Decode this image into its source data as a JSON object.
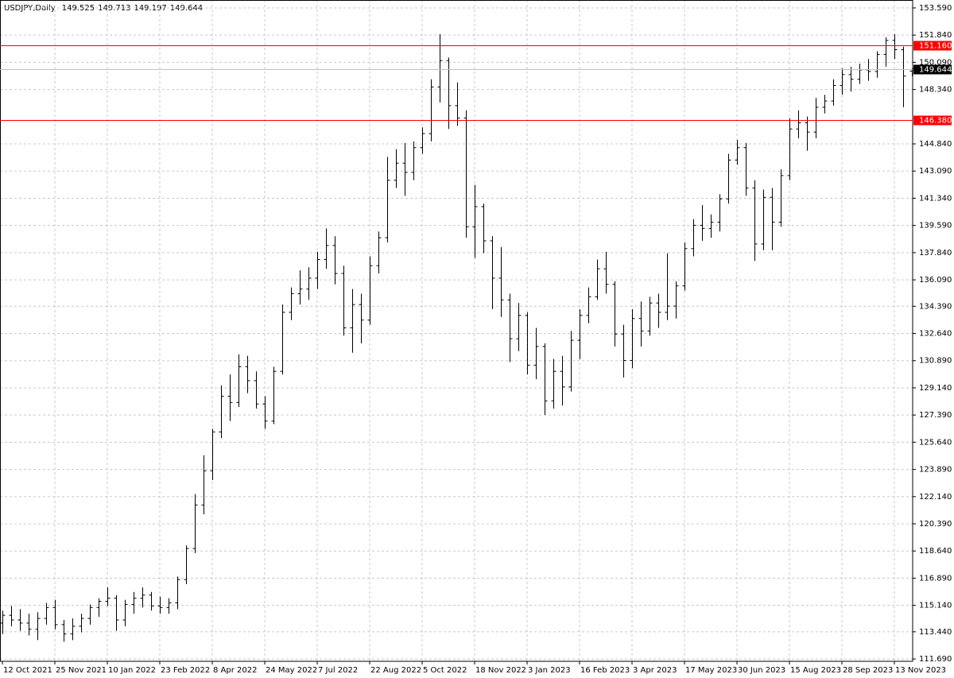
{
  "chart_data": {
    "type": "ohlc",
    "title": "USDJPY,Daily",
    "title_values": [
      "149.525",
      "149.713",
      "149.197",
      "149.644"
    ],
    "color": "#000000",
    "grid": true,
    "categories": [
      "12 Oct 2021",
      null,
      null,
      null,
      null,
      null,
      "25 Nov 2021",
      null,
      null,
      null,
      null,
      null,
      "10 Jan 2022",
      null,
      null,
      null,
      null,
      null,
      "23 Feb 2022",
      null,
      null,
      null,
      null,
      null,
      "8 Apr 2022",
      null,
      null,
      null,
      null,
      null,
      "24 May 2022",
      null,
      null,
      null,
      null,
      null,
      "7 Jul 2022",
      null,
      null,
      null,
      null,
      null,
      "22 Aug 2022",
      null,
      null,
      null,
      null,
      null,
      "5 Oct 2022",
      null,
      null,
      null,
      null,
      null,
      "18 Nov 2022",
      null,
      null,
      null,
      null,
      null,
      "3 Jan 2023",
      null,
      null,
      null,
      null,
      null,
      "16 Feb 2023",
      null,
      null,
      null,
      null,
      null,
      "3 Apr 2023",
      null,
      null,
      null,
      null,
      null,
      "17 May 2023",
      null,
      null,
      null,
      null,
      null,
      "30 Jun 2023",
      null,
      null,
      null,
      null,
      null,
      "15 Aug 2023",
      null,
      null,
      null,
      null,
      null,
      "28 Sep 2023",
      null,
      null,
      null,
      null,
      null,
      "13 Nov 2023",
      null,
      null
    ],
    "open": [
      114.0,
      114.5,
      114.2,
      114.0,
      113.6,
      114.3,
      115.0,
      113.9,
      113.3,
      113.8,
      114.3,
      115.0,
      115.4,
      115.6,
      114.2,
      115.2,
      115.6,
      115.8,
      115.1,
      115.0,
      115.3,
      116.8,
      118.8,
      121.6,
      123.8,
      126.3,
      128.6,
      128.2,
      130.5,
      129.6,
      128.1,
      127.0,
      130.2,
      134.0,
      135.2,
      135.5,
      136.2,
      137.4,
      138.3,
      136.5,
      133.0,
      134.5,
      133.5,
      137.0,
      138.8,
      142.5,
      143.6,
      143.0,
      144.6,
      145.5,
      148.5,
      150.2,
      147.3,
      146.5,
      139.5,
      140.8,
      138.6,
      136.2,
      134.8,
      132.3,
      133.8,
      130.6,
      131.8,
      128.3,
      130.2,
      129.2,
      132.2,
      133.8,
      135.0,
      136.8,
      135.8,
      132.6,
      130.9,
      133.6,
      132.8,
      134.6,
      134.0,
      134.4,
      135.7,
      138.1,
      139.6,
      139.4,
      139.8,
      141.3,
      143.8,
      144.6,
      142.0,
      138.4,
      141.4,
      139.8,
      142.8,
      145.8,
      146.2,
      145.6,
      147.2,
      147.6,
      148.6,
      149.3,
      149.0,
      149.6,
      149.5,
      150.6,
      151.5,
      150.9,
      149.525
    ],
    "high": [
      114.8,
      115.1,
      114.9,
      114.6,
      114.7,
      115.3,
      115.5,
      114.2,
      114.3,
      114.6,
      115.2,
      115.6,
      116.3,
      115.8,
      115.5,
      116.0,
      116.3,
      116.0,
      115.7,
      115.6,
      117.0,
      119.0,
      122.3,
      124.8,
      126.5,
      129.3,
      130.0,
      131.3,
      131.2,
      130.2,
      128.6,
      130.5,
      134.5,
      135.6,
      136.7,
      136.9,
      137.9,
      139.4,
      138.9,
      137.0,
      135.5,
      135.2,
      137.6,
      139.2,
      144.0,
      144.5,
      144.9,
      145.0,
      145.9,
      149.0,
      151.9,
      150.4,
      148.8,
      147.0,
      142.2,
      141.0,
      138.9,
      138.2,
      135.2,
      134.6,
      134.0,
      133.0,
      132.0,
      131.0,
      131.2,
      132.8,
      134.2,
      135.6,
      137.4,
      137.9,
      136.0,
      133.2,
      134.2,
      134.7,
      135.0,
      135.2,
      137.8,
      136.0,
      138.5,
      140.0,
      140.9,
      140.3,
      141.6,
      144.2,
      145.1,
      144.9,
      142.5,
      141.9,
      142.0,
      143.2,
      146.5,
      147.0,
      146.6,
      147.8,
      148.0,
      149.0,
      149.7,
      149.8,
      150.0,
      150.3,
      150.8,
      151.7,
      151.9,
      151.1,
      149.713
    ],
    "low": [
      113.3,
      113.8,
      113.5,
      113.2,
      112.9,
      113.9,
      113.6,
      112.8,
      112.9,
      113.4,
      113.9,
      114.4,
      115.1,
      113.5,
      113.8,
      114.6,
      115.0,
      114.8,
      114.6,
      114.6,
      114.9,
      116.5,
      118.5,
      121.0,
      123.2,
      125.9,
      127.0,
      127.9,
      128.8,
      127.8,
      126.5,
      126.8,
      130.0,
      133.5,
      134.5,
      134.8,
      135.5,
      136.8,
      135.8,
      132.5,
      131.4,
      132.0,
      133.2,
      136.5,
      138.5,
      142.0,
      141.5,
      142.5,
      144.2,
      145.0,
      147.5,
      145.8,
      146.0,
      138.8,
      137.5,
      137.8,
      134.2,
      133.7,
      130.8,
      131.5,
      130.0,
      129.7,
      127.4,
      127.8,
      128.0,
      128.9,
      131.0,
      133.3,
      134.8,
      135.2,
      131.8,
      129.8,
      130.4,
      131.8,
      132.5,
      133.0,
      133.5,
      133.6,
      135.4,
      137.6,
      138.6,
      138.8,
      139.2,
      141.0,
      143.5,
      141.5,
      137.3,
      138.0,
      138.0,
      139.5,
      142.5,
      145.2,
      144.4,
      145.2,
      146.8,
      147.3,
      148.0,
      148.2,
      148.7,
      148.9,
      149.1,
      149.8,
      150.3,
      147.2,
      149.197
    ],
    "close": [
      114.5,
      114.2,
      114.0,
      113.6,
      114.3,
      115.0,
      113.9,
      113.3,
      113.8,
      114.3,
      115.0,
      115.4,
      115.6,
      114.2,
      115.2,
      115.6,
      115.8,
      115.1,
      115.0,
      115.3,
      116.8,
      118.8,
      121.6,
      123.8,
      126.3,
      128.6,
      128.2,
      130.5,
      129.6,
      128.1,
      127.0,
      130.2,
      134.0,
      135.2,
      135.5,
      136.2,
      137.4,
      138.3,
      136.5,
      133.0,
      134.5,
      133.5,
      137.0,
      138.8,
      142.5,
      143.6,
      143.0,
      144.6,
      145.5,
      148.5,
      150.2,
      147.3,
      146.5,
      139.5,
      140.8,
      138.6,
      136.2,
      134.8,
      132.3,
      133.8,
      130.6,
      131.8,
      128.3,
      130.2,
      129.2,
      132.2,
      133.8,
      135.0,
      136.8,
      135.8,
      132.6,
      130.9,
      133.6,
      132.8,
      134.6,
      134.0,
      134.4,
      135.7,
      138.1,
      139.6,
      139.4,
      139.8,
      141.3,
      143.8,
      144.6,
      142.0,
      138.4,
      141.4,
      139.8,
      142.8,
      145.8,
      146.2,
      145.6,
      147.2,
      147.6,
      148.6,
      149.3,
      149.0,
      149.6,
      149.5,
      150.6,
      151.5,
      150.9,
      149.2,
      149.644
    ],
    "ylim": [
      111.54,
      154.1
    ],
    "yticks": [
      {
        "value": 153.59,
        "label": "153.590"
      },
      {
        "value": 151.84,
        "label": "151.840"
      },
      {
        "value": 150.09,
        "label": "150.090"
      },
      {
        "value": 148.34,
        "label": "148.340"
      },
      {
        "value": 144.84,
        "label": "144.840"
      },
      {
        "value": 143.09,
        "label": "143.090"
      },
      {
        "value": 141.34,
        "label": "141.340"
      },
      {
        "value": 139.59,
        "label": "139.590"
      },
      {
        "value": 137.84,
        "label": "137.840"
      },
      {
        "value": 136.09,
        "label": "136.090"
      },
      {
        "value": 134.39,
        "label": "134.390"
      },
      {
        "value": 132.64,
        "label": "132.640"
      },
      {
        "value": 130.89,
        "label": "130.890"
      },
      {
        "value": 129.14,
        "label": "129.140"
      },
      {
        "value": 127.39,
        "label": "127.390"
      },
      {
        "value": 125.64,
        "label": "125.640"
      },
      {
        "value": 123.89,
        "label": "123.890"
      },
      {
        "value": 122.14,
        "label": "122.140"
      },
      {
        "value": 120.39,
        "label": "120.390"
      },
      {
        "value": 118.64,
        "label": "118.640"
      },
      {
        "value": 116.89,
        "label": "116.890"
      },
      {
        "value": 115.14,
        "label": "115.140"
      },
      {
        "value": 113.44,
        "label": "113.440"
      },
      {
        "value": 111.69,
        "label": "111.690"
      }
    ],
    "hlines": [
      {
        "value": 151.16,
        "label": "151.160",
        "color": "#ff0000",
        "label_color": "#ff0000"
      },
      {
        "value": 146.38,
        "label": "146.380",
        "color": "#ff0000",
        "label_color": "#ff0000"
      },
      {
        "value": 149.644,
        "label": "149.644",
        "color": "#c0c0c0",
        "label_color": "#000000"
      }
    ]
  }
}
